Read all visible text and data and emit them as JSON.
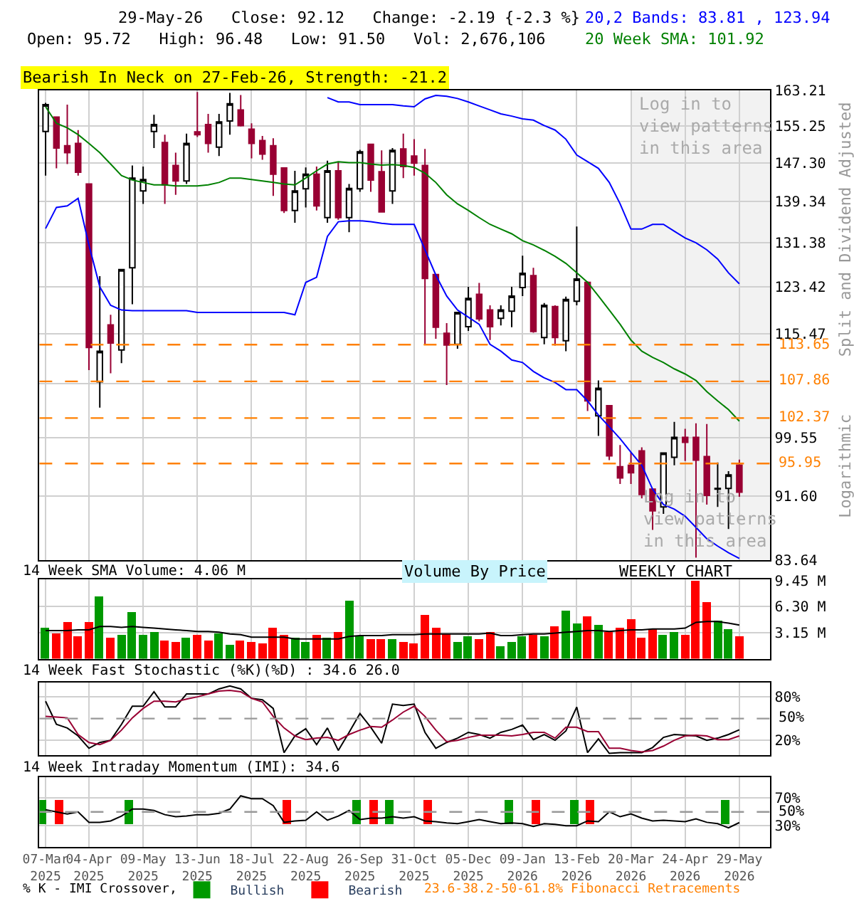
{
  "chart_data": [
    {
      "type": "candlestick",
      "log": true,
      "grid": true,
      "tick_labels": "y",
      "ylabel": "Split and Dividend Adjusted",
      "x": [
        "2025-03-07",
        "2025-03-14",
        "2025-03-21",
        "2025-03-28",
        "2025-04-04",
        "2025-04-11",
        "2025-04-18",
        "2025-04-25",
        "2025-05-02",
        "2025-05-09",
        "2025-05-16",
        "2025-05-23",
        "2025-05-30",
        "2025-06-06",
        "2025-06-13",
        "2025-06-20",
        "2025-06-27",
        "2025-07-04",
        "2025-07-11",
        "2025-07-18",
        "2025-07-25",
        "2025-08-01",
        "2025-08-08",
        "2025-08-15",
        "2025-08-22",
        "2025-08-29",
        "2025-09-05",
        "2025-09-12",
        "2025-09-19",
        "2025-09-26",
        "2025-10-03",
        "2025-10-10",
        "2025-10-17",
        "2025-10-24",
        "2025-10-31",
        "2025-11-07",
        "2025-11-14",
        "2025-11-21",
        "2025-11-28",
        "2025-12-05",
        "2025-12-12",
        "2025-12-19",
        "2025-12-26",
        "2026-01-02",
        "2026-01-09",
        "2026-01-16",
        "2026-01-23",
        "2026-01-30",
        "2026-02-06",
        "2026-02-13",
        "2026-02-20",
        "2026-02-27",
        "2026-03-06",
        "2026-03-13",
        "2026-03-20",
        "2026-03-27",
        "2026-04-03",
        "2026-04-10",
        "2026-04-17",
        "2026-04-24",
        "2026-05-01",
        "2026-05-08",
        "2026-05-15",
        "2026-05-22",
        "2026-05-29"
      ],
      "xlim": [
        "2025-03-03",
        "2026-06-18"
      ],
      "xticks": [
        "2025-03-07",
        "2025-04-04",
        "2025-05-09",
        "2025-06-13",
        "2025-07-18",
        "2025-08-22",
        "2025-09-26",
        "2025-10-31",
        "2025-12-05",
        "2026-01-09",
        "2026-02-13",
        "2026-03-20",
        "2026-04-24",
        "2026-05-29"
      ],
      "ylim": [
        83.64,
        163.21
      ],
      "yticks": [
        83.64,
        {
          "value": 91.6,
          "label": "91.60"
        },
        99.55,
        {
          "value": 107.51,
          "label": null
        },
        115.47,
        123.42,
        131.38,
        139.34,
        {
          "value": 147.3,
          "label": "147.30"
        },
        155.25,
        163.21
      ],
      "series": [
        {
          "colors": [
            "#ffffff",
            "#990033",
            "#990033",
            "#990033",
            "#990033",
            "#ffffff",
            "#990033",
            "#ffffff",
            "#ffffff",
            "#ffffff",
            "#ffffff",
            "#990033",
            "#990033",
            "#ffffff",
            "#990033",
            "#990033",
            "#ffffff",
            "#ffffff",
            "#990033",
            "#990033",
            "#990033",
            "#990033",
            "#990033",
            "#ffffff",
            "#ffffff",
            "#990033",
            "#ffffff",
            "#990033",
            "#ffffff",
            "#ffffff",
            "#990033",
            "#990033",
            "#ffffff",
            "#990033",
            "#990033",
            "#990033",
            "#990033",
            "#990033",
            "#ffffff",
            "#ffffff",
            "#990033",
            "#990033",
            "#ffffff",
            "#ffffff",
            "#ffffff",
            "#990033",
            "#ffffff",
            "#990033",
            "#ffffff",
            "#ffffff",
            "#990033",
            "#ffffff",
            "#990033",
            "#990033",
            "#990033",
            "#990033",
            "#990033",
            "#ffffff",
            "#ffffff",
            "#990033",
            "#990033",
            "#990033",
            "#000000",
            "#ffffff",
            "#990033"
          ],
          "ohlc": [
            [
              154.0,
              160.4,
              144.6,
              160.0
            ],
            [
              157.2,
              157.2,
              146.1,
              150.4
            ],
            [
              150.9,
              160.0,
              147.0,
              149.4
            ],
            [
              151.4,
              154.3,
              144.6,
              145.3
            ],
            [
              142.9,
              142.9,
              109.6,
              113.2
            ],
            [
              107.8,
              125.3,
              103.9,
              112.6
            ],
            [
              116.9,
              118.6,
              109.1,
              113.9
            ],
            [
              112.8,
              126.5,
              110.7,
              126.5
            ],
            [
              126.8,
              146.7,
              120.4,
              144.1
            ],
            [
              141.5,
              146.5,
              138.9,
              143.8
            ],
            [
              154.0,
              157.7,
              150.4,
              155.5
            ],
            [
              151.6,
              153.3,
              138.9,
              142.7
            ],
            [
              146.7,
              149.4,
              140.7,
              143.5
            ],
            [
              143.5,
              153.5,
              142.9,
              151.4
            ],
            [
              153.9,
              162.9,
              152.8,
              153.3
            ],
            [
              155.5,
              157.9,
              149.4,
              151.4
            ],
            [
              150.6,
              157.9,
              148.7,
              156.1
            ],
            [
              156.3,
              162.7,
              153.3,
              160.2
            ],
            [
              158.8,
              162.2,
              155.1,
              155.3
            ],
            [
              154.5,
              155.8,
              148.2,
              151.4
            ],
            [
              152.0,
              153.0,
              147.9,
              149.1
            ],
            [
              150.9,
              152.5,
              140.5,
              144.9
            ],
            [
              146.2,
              146.2,
              137.1,
              137.6
            ],
            [
              137.6,
              145.6,
              135.2,
              141.5
            ],
            [
              141.9,
              146.3,
              138.2,
              144.9
            ],
            [
              144.9,
              146.5,
              137.6,
              138.5
            ],
            [
              136.2,
              147.7,
              135.2,
              145.6
            ],
            [
              145.6,
              147.5,
              135.8,
              136.2
            ],
            [
              136.2,
              142.9,
              133.4,
              142.0
            ],
            [
              141.9,
              150.0,
              141.3,
              149.6
            ],
            [
              151.2,
              151.2,
              141.3,
              143.7
            ],
            [
              145.4,
              149.9,
              137.3,
              137.3
            ],
            [
              141.5,
              150.4,
              138.9,
              149.9
            ],
            [
              150.2,
              153.5,
              144.1,
              146.5
            ],
            [
              148.7,
              152.3,
              144.6,
              147.2
            ],
            [
              146.7,
              150.2,
              113.7,
              124.9
            ],
            [
              125.6,
              125.6,
              114.6,
              116.5
            ],
            [
              115.5,
              117.2,
              107.3,
              113.6
            ],
            [
              113.7,
              119.0,
              113.0,
              119.0
            ],
            [
              116.6,
              123.4,
              115.9,
              121.4
            ],
            [
              122.1,
              124.1,
              117.5,
              117.9
            ],
            [
              119.4,
              120.2,
              114.4,
              116.6
            ],
            [
              118.0,
              120.2,
              116.8,
              119.4
            ],
            [
              119.2,
              123.4,
              116.5,
              121.8
            ],
            [
              123.3,
              129.0,
              121.8,
              125.8
            ],
            [
              125.4,
              126.8,
              115.6,
              115.8
            ],
            [
              114.8,
              120.6,
              113.7,
              120.2
            ],
            [
              120.0,
              120.2,
              113.5,
              114.8
            ],
            [
              114.3,
              121.7,
              112.6,
              121.2
            ],
            [
              120.9,
              134.5,
              120.2,
              124.8
            ],
            [
              124.2,
              124.4,
              103.4,
              104.9
            ],
            [
              102.7,
              108.0,
              99.8,
              106.8
            ],
            [
              104.2,
              104.2,
              96.4,
              97.0
            ],
            [
              95.5,
              98.5,
              93.2,
              94.0
            ],
            [
              95.7,
              97.5,
              93.2,
              94.7
            ],
            [
              97.7,
              98.2,
              91.3,
              91.8
            ],
            [
              92.5,
              92.5,
              87.3,
              89.7
            ],
            [
              90.2,
              97.5,
              89.3,
              97.4
            ],
            [
              96.8,
              101.8,
              95.7,
              99.6
            ],
            [
              99.6,
              100.8,
              96.3,
              98.9
            ],
            [
              99.6,
              101.6,
              83.9,
              96.4
            ],
            [
              96.9,
              101.5,
              90.5,
              91.7
            ],
            [
              92.5,
              96.1,
              90.2,
              92.6
            ],
            [
              92.6,
              94.9,
              87.4,
              94.4
            ],
            [
              95.72,
              96.48,
              91.5,
              92.12
            ]
          ]
        },
        {
          "type": "line",
          "color": "#0000ff",
          "values": [
            null,
            null,
            null,
            null,
            null,
            null,
            null,
            null,
            null,
            null,
            null,
            null,
            null,
            null,
            null,
            null,
            null,
            null,
            null,
            null,
            null,
            null,
            null,
            null,
            null,
            null,
            161.6,
            160.6,
            160.6,
            160.0,
            160.0,
            160.0,
            160.0,
            159.7,
            159.5,
            161.3,
            162.1,
            161.9,
            161.4,
            160.6,
            159.7,
            158.8,
            157.9,
            157.4,
            156.8,
            156.5,
            155.3,
            154.3,
            152.3,
            148.9,
            147.5,
            146.1,
            143.2,
            138.9,
            134.0,
            134.0,
            134.9,
            134.9,
            133.6,
            132.3,
            131.4,
            130.1,
            128.4,
            125.9,
            123.94
          ]
        },
        {
          "type": "line",
          "color": "#0000ff",
          "values": [
            134.1,
            138.2,
            138.5,
            140.0,
            131.0,
            123.4,
            120.2,
            119.4,
            119.3,
            119.3,
            119.3,
            119.3,
            119.3,
            119.3,
            119.0,
            119.0,
            119.0,
            119.0,
            119.0,
            119.0,
            119.0,
            119.0,
            119.0,
            118.6,
            124.2,
            125.1,
            132.6,
            135.4,
            135.6,
            135.6,
            135.4,
            135.1,
            134.9,
            134.9,
            134.9,
            130.1,
            125.5,
            121.8,
            119.4,
            118.2,
            117.0,
            113.7,
            112.6,
            111.2,
            110.8,
            109.4,
            108.4,
            107.7,
            106.6,
            106.6,
            104.9,
            102.8,
            101.1,
            99.4,
            97.5,
            95.7,
            92.5,
            90.5,
            89.9,
            89.0,
            87.6,
            86.2,
            85.3,
            84.5,
            83.81
          ]
        },
        {
          "type": "line",
          "color": "#008000",
          "values": [
            159.5,
            155.8,
            154.8,
            153.3,
            151.4,
            149.4,
            147.0,
            144.6,
            143.7,
            143.2,
            142.7,
            142.7,
            142.5,
            142.5,
            142.5,
            142.7,
            143.2,
            144.1,
            144.1,
            143.8,
            143.5,
            143.2,
            142.9,
            142.7,
            144.1,
            145.6,
            147.0,
            147.5,
            147.3,
            147.3,
            147.0,
            146.8,
            146.9,
            146.7,
            146.3,
            145.1,
            143.2,
            140.7,
            138.9,
            137.6,
            136.2,
            134.9,
            134.0,
            133.1,
            131.8,
            131.0,
            130.0,
            128.9,
            127.6,
            125.9,
            124.2,
            121.8,
            119.4,
            117.0,
            114.4,
            112.6,
            111.6,
            110.8,
            109.8,
            109.0,
            108.0,
            106.3,
            104.9,
            103.6,
            101.92
          ]
        }
      ],
      "ref_lines": [
        {
          "axis": "y",
          "value": 113.65,
          "label": "113.65",
          "color": "#ff8000",
          "line_style": "dashed"
        },
        {
          "axis": "y",
          "value": 107.86,
          "label": "107.86",
          "color": "#ff8000",
          "line_style": "dashed"
        },
        {
          "axis": "y",
          "value": 102.37,
          "label": "102.37",
          "color": "#ff8000",
          "line_style": "dashed"
        },
        {
          "axis": "y",
          "value": 95.95,
          "label": "95.95",
          "color": "#ff8000",
          "line_style": "dashed"
        }
      ],
      "bands": [
        {
          "axis": "x",
          "from": "2026-03-20",
          "to": "2026-06-18",
          "label": "Log in to\nview patterns\nin this area",
          "color": "#f2f2f2"
        }
      ],
      "annotations": [
        "29-May-26   Close: 92.12   Change: -2.19 {-2.3 %}",
        "Open: 95.72   High: 96.48   Low: 91.50   Vol: 2,676,106",
        "20,2 Bands: 83.81 , 123.94",
        "20 Week SMA: 101.92",
        "Bearish In Neck on 27-Feb-26, Strength: -21.2",
        "Logarithmic",
        "Log in to\nview patterns\nin this area",
        "23.6-38.2-50-61.8% Fibonacci Retracements"
      ]
    },
    {
      "type": "bar",
      "grid": true,
      "tick_labels": "y",
      "title": "14 Week SMA Volume: 4.06 M",
      "x": [
        "2025-03-07",
        "2025-03-14",
        "2025-03-21",
        "2025-03-28",
        "2025-04-04",
        "2025-04-11",
        "2025-04-18",
        "2025-04-25",
        "2025-05-02",
        "2025-05-09",
        "2025-05-16",
        "2025-05-23",
        "2025-05-30",
        "2025-06-06",
        "2025-06-13",
        "2025-06-20",
        "2025-06-27",
        "2025-07-04",
        "2025-07-11",
        "2025-07-18",
        "2025-07-25",
        "2025-08-01",
        "2025-08-08",
        "2025-08-15",
        "2025-08-22",
        "2025-08-29",
        "2025-09-05",
        "2025-09-12",
        "2025-09-19",
        "2025-09-26",
        "2025-10-03",
        "2025-10-10",
        "2025-10-17",
        "2025-10-24",
        "2025-10-31",
        "2025-11-07",
        "2025-11-14",
        "2025-11-21",
        "2025-11-28",
        "2025-12-05",
        "2025-12-12",
        "2025-12-19",
        "2025-12-26",
        "2026-01-02",
        "2026-01-09",
        "2026-01-16",
        "2026-01-23",
        "2026-01-30",
        "2026-02-06",
        "2026-02-13",
        "2026-02-20",
        "2026-02-27",
        "2026-03-06",
        "2026-03-13",
        "2026-03-20",
        "2026-03-27",
        "2026-04-03",
        "2026-04-10",
        "2026-04-17",
        "2026-04-24",
        "2026-05-01",
        "2026-05-08",
        "2026-05-15",
        "2026-05-22",
        "2026-05-29"
      ],
      "xlim": [
        "2025-03-03",
        "2026-06-18"
      ],
      "xticks": [
        "2025-03-07",
        "2025-04-04",
        "2025-05-09",
        "2025-06-13",
        "2025-07-18",
        "2025-08-22",
        "2025-09-26",
        "2025-10-31",
        "2025-12-05",
        "2026-01-09",
        "2026-02-13",
        "2026-03-20",
        "2026-04-24",
        "2026-05-29"
      ],
      "ylim": [
        0,
        9.6
      ],
      "yticks": [
        {
          "value": 3.15,
          "label": "3.15 M"
        },
        {
          "value": 6.3,
          "label": "6.30 M"
        },
        {
          "value": 9.45,
          "label": "9.45 M"
        }
      ],
      "series": [
        {
          "colors": [
            "#009900",
            "#ff0000",
            "#ff0000",
            "#ff0000",
            "#ff0000",
            "#009900",
            "#ff0000",
            "#009900",
            "#009900",
            "#009900",
            "#009900",
            "#ff0000",
            "#ff0000",
            "#009900",
            "#ff0000",
            "#ff0000",
            "#009900",
            "#009900",
            "#ff0000",
            "#ff0000",
            "#ff0000",
            "#ff0000",
            "#ff0000",
            "#009900",
            "#009900",
            "#ff0000",
            "#009900",
            "#ff0000",
            "#009900",
            "#009900",
            "#ff0000",
            "#ff0000",
            "#009900",
            "#ff0000",
            "#ff0000",
            "#ff0000",
            "#ff0000",
            "#ff0000",
            "#009900",
            "#009900",
            "#ff0000",
            "#ff0000",
            "#009900",
            "#009900",
            "#009900",
            "#ff0000",
            "#009900",
            "#ff0000",
            "#009900",
            "#009900",
            "#ff0000",
            "#009900",
            "#ff0000",
            "#ff0000",
            "#ff0000",
            "#ff0000",
            "#ff0000",
            "#009900",
            "#009900",
            "#ff0000",
            "#ff0000",
            "#ff0000",
            "#009900",
            "#009900",
            "#ff0000"
          ],
          "values": [
            3.83,
            3.05,
            4.46,
            2.73,
            4.46,
            7.46,
            2.57,
            2.89,
            5.67,
            2.89,
            3.15,
            2.21,
            2.1,
            2.57,
            2.89,
            2.21,
            3.05,
            1.63,
            2.26,
            1.94,
            1.79,
            3.68,
            2.89,
            2.47,
            2.1,
            2.84,
            2.47,
            3.31,
            7.09,
            2.78,
            2.36,
            2.36,
            2.36,
            1.94,
            1.79,
            5.25,
            3.83,
            3.05,
            2.1,
            2.63,
            2.36,
            3.31,
            1.58,
            1.94,
            2.63,
            2.89,
            2.78,
            3.94,
            5.83,
            4.31,
            5.2,
            4.1,
            3.15,
            3.78,
            4.73,
            2.52,
            3.52,
            2.84,
            3.15,
            2.84,
            9.45,
            6.93,
            4.57,
            3.52,
            2.68
          ]
        },
        {
          "color": "#000000",
          "type": "line",
          "values": [
            3.4,
            3.4,
            3.4,
            3.5,
            3.5,
            3.9,
            3.9,
            3.8,
            3.9,
            3.8,
            3.7,
            3.6,
            3.5,
            3.4,
            3.3,
            3.3,
            3.2,
            3.0,
            2.9,
            2.6,
            2.6,
            2.6,
            2.6,
            2.4,
            2.4,
            2.4,
            2.4,
            2.4,
            2.7,
            2.8,
            2.8,
            2.8,
            2.9,
            2.9,
            2.9,
            3.0,
            3.0,
            3.0,
            3.0,
            3.0,
            3.0,
            3.1,
            2.8,
            2.8,
            2.9,
            3.0,
            3.0,
            3.1,
            3.2,
            3.3,
            3.4,
            3.4,
            3.3,
            3.4,
            3.5,
            3.5,
            3.6,
            3.6,
            3.6,
            3.7,
            4.4,
            4.5,
            4.5,
            4.3,
            4.06
          ]
        }
      ],
      "annotations": [
        "Volume By Price",
        "WEEKLY CHART"
      ]
    },
    {
      "type": "line",
      "grid": true,
      "tick_labels": "y",
      "title": "14 Week Fast Stochastic (%K)(%D) : 34.6 26.0",
      "x": [
        "2025-03-07",
        "2025-03-14",
        "2025-03-21",
        "2025-03-28",
        "2025-04-04",
        "2025-04-11",
        "2025-04-18",
        "2025-04-25",
        "2025-05-02",
        "2025-05-09",
        "2025-05-16",
        "2025-05-23",
        "2025-05-30",
        "2025-06-06",
        "2025-06-13",
        "2025-06-20",
        "2025-06-27",
        "2025-07-04",
        "2025-07-11",
        "2025-07-18",
        "2025-07-25",
        "2025-08-01",
        "2025-08-08",
        "2025-08-15",
        "2025-08-22",
        "2025-08-29",
        "2025-09-05",
        "2025-09-12",
        "2025-09-19",
        "2025-09-26",
        "2025-10-03",
        "2025-10-10",
        "2025-10-17",
        "2025-10-24",
        "2025-10-31",
        "2025-11-07",
        "2025-11-14",
        "2025-11-21",
        "2025-11-28",
        "2025-12-05",
        "2025-12-12",
        "2025-12-19",
        "2025-12-26",
        "2026-01-02",
        "2026-01-09",
        "2026-01-16",
        "2026-01-23",
        "2026-01-30",
        "2026-02-06",
        "2026-02-13",
        "2026-02-20",
        "2026-02-27",
        "2026-03-06",
        "2026-03-13",
        "2026-03-20",
        "2026-03-27",
        "2026-04-03",
        "2026-04-10",
        "2026-04-17",
        "2026-04-24",
        "2026-05-01",
        "2026-05-08",
        "2026-05-15",
        "2026-05-22",
        "2026-05-29"
      ],
      "xlim": [
        "2025-03-03",
        "2026-06-18"
      ],
      "xticks": [
        "2025-03-07",
        "2025-04-04",
        "2025-05-09",
        "2025-06-13",
        "2025-07-18",
        "2025-08-22",
        "2025-09-26",
        "2025-10-31",
        "2025-12-05",
        "2026-01-09",
        "2026-02-13",
        "2026-03-20",
        "2026-04-24",
        "2026-05-29"
      ],
      "ylim": [
        0,
        100
      ],
      "yticks": [
        {
          "value": 20,
          "label": "20%"
        },
        {
          "value": 80,
          "label": "80%"
        }
      ],
      "ref_lines": [
        {
          "axis": "y",
          "value": 50,
          "label": "50%",
          "color": "#999999",
          "line_style": "dashed"
        }
      ],
      "series": [
        {
          "color": "#000000",
          "values": [
            74,
            42,
            37,
            26,
            9,
            17,
            20,
            42,
            67,
            67,
            87,
            66,
            66,
            84,
            84,
            84,
            91,
            95,
            91,
            78,
            76,
            64,
            3,
            26,
            36,
            14,
            37,
            6,
            31,
            57,
            38,
            16,
            70,
            68,
            70,
            31,
            9,
            17,
            23,
            31,
            28,
            23,
            31,
            35,
            41,
            21,
            28,
            20,
            33,
            66,
            3,
            22,
            2,
            3,
            3,
            3,
            10,
            24,
            28,
            27,
            26,
            20,
            23,
            28,
            34.6
          ]
        },
        {
          "color": "#990033",
          "values": [
            53,
            52,
            51,
            28,
            17,
            14,
            20,
            34,
            51,
            64,
            74,
            74,
            73,
            77,
            80,
            84,
            88,
            89,
            87,
            78,
            73,
            53,
            37,
            26,
            21,
            23,
            24,
            20,
            28,
            34,
            39,
            38,
            48,
            59,
            67,
            53,
            34,
            18,
            20,
            24,
            27,
            27,
            27,
            26,
            28,
            31,
            31,
            23,
            38,
            38,
            32,
            32,
            9,
            9,
            6,
            4,
            6,
            12,
            20,
            26,
            27,
            26,
            21,
            21,
            26.0
          ]
        }
      ]
    },
    {
      "type": "line",
      "grid": true,
      "legend": "bottom",
      "title": "14 Week Intraday Momentum (IMI): 34.6",
      "x": [
        "2025-03-07",
        "2025-03-14",
        "2025-03-21",
        "2025-03-28",
        "2025-04-04",
        "2025-04-11",
        "2025-04-18",
        "2025-04-25",
        "2025-05-02",
        "2025-05-09",
        "2025-05-16",
        "2025-05-23",
        "2025-05-30",
        "2025-06-06",
        "2025-06-13",
        "2025-06-20",
        "2025-06-27",
        "2025-07-04",
        "2025-07-11",
        "2025-07-18",
        "2025-07-25",
        "2025-08-01",
        "2025-08-08",
        "2025-08-15",
        "2025-08-22",
        "2025-08-29",
        "2025-09-05",
        "2025-09-12",
        "2025-09-19",
        "2025-09-26",
        "2025-10-03",
        "2025-10-10",
        "2025-10-17",
        "2025-10-24",
        "2025-10-31",
        "2025-11-07",
        "2025-11-14",
        "2025-11-21",
        "2025-11-28",
        "2025-12-05",
        "2025-12-12",
        "2025-12-19",
        "2025-12-26",
        "2026-01-02",
        "2026-01-09",
        "2026-01-16",
        "2026-01-23",
        "2026-01-30",
        "2026-02-06",
        "2026-02-13",
        "2026-02-20",
        "2026-02-27",
        "2026-03-06",
        "2026-03-13",
        "2026-03-20",
        "2026-03-27",
        "2026-04-03",
        "2026-04-10",
        "2026-04-17",
        "2026-04-24",
        "2026-05-01",
        "2026-05-08",
        "2026-05-15",
        "2026-05-22",
        "2026-05-29"
      ],
      "xlim": [
        "2025-03-03",
        "2026-06-18"
      ],
      "xticks": [
        {
          "value": "2025-03-07",
          "label": "07-Mar\n2025"
        },
        {
          "value": "2025-04-04",
          "label": "04-Apr\n2025"
        },
        {
          "value": "2025-05-09",
          "label": "09-May\n2025"
        },
        {
          "value": "2025-06-13",
          "label": "13-Jun\n2025"
        },
        {
          "value": "2025-07-18",
          "label": "18-Jul\n2025"
        },
        {
          "value": "2025-08-22",
          "label": "22-Aug\n2025"
        },
        {
          "value": "2025-09-26",
          "label": "26-Sep\n2025"
        },
        {
          "value": "2025-10-31",
          "label": "31-Oct\n2025"
        },
        {
          "value": "2025-12-05",
          "label": "05-Dec\n2025"
        },
        {
          "value": "2026-01-09",
          "label": "09-Jan\n2026"
        },
        {
          "value": "2026-02-13",
          "label": "13-Feb\n2026"
        },
        {
          "value": "2026-03-20",
          "label": "20-Mar\n2026"
        },
        {
          "value": "2026-04-24",
          "label": "24-Apr\n2026"
        },
        {
          "value": "2026-05-29",
          "label": "29-May\n2026"
        }
      ],
      "ylim": [
        0,
        100
      ],
      "yticks": [
        {
          "value": 30,
          "label": "30%"
        },
        {
          "value": 70,
          "label": "70%"
        }
      ],
      "ref_lines": [
        {
          "axis": "y",
          "value": 50,
          "label": "50%",
          "color": "#999999",
          "line_style": "dashed"
        }
      ],
      "series": [
        {
          "type": "bar",
          "name": "Bullish",
          "color": "#009900",
          "base": [
            32,
            null,
            null,
            null,
            null,
            null,
            null,
            null,
            32,
            null,
            null,
            null,
            null,
            null,
            null,
            null,
            null,
            null,
            null,
            null,
            null,
            null,
            null,
            null,
            null,
            null,
            null,
            null,
            null,
            32,
            null,
            null,
            32,
            null,
            null,
            null,
            null,
            null,
            null,
            null,
            null,
            null,
            null,
            32,
            null,
            null,
            null,
            null,
            null,
            32,
            null,
            null,
            null,
            null,
            null,
            null,
            null,
            null,
            null,
            null,
            null,
            null,
            null,
            32,
            null
          ],
          "values": [
            36,
            null,
            null,
            null,
            null,
            null,
            null,
            null,
            36,
            null,
            null,
            null,
            null,
            null,
            null,
            null,
            null,
            null,
            null,
            null,
            null,
            null,
            null,
            null,
            null,
            null,
            null,
            null,
            null,
            36,
            null,
            null,
            36,
            null,
            null,
            null,
            null,
            null,
            null,
            null,
            null,
            null,
            null,
            36,
            null,
            null,
            null,
            null,
            null,
            36,
            null,
            null,
            null,
            null,
            null,
            null,
            null,
            null,
            null,
            null,
            null,
            null,
            null,
            36,
            null
          ]
        },
        {
          "type": "bar",
          "name": "Bearish",
          "color": "#ff0000",
          "base": [
            null,
            32,
            null,
            null,
            null,
            null,
            null,
            null,
            null,
            null,
            null,
            null,
            null,
            null,
            null,
            null,
            null,
            null,
            null,
            null,
            null,
            null,
            32,
            null,
            null,
            null,
            null,
            null,
            null,
            null,
            32,
            null,
            null,
            null,
            null,
            32,
            null,
            null,
            null,
            null,
            null,
            null,
            null,
            null,
            null,
            32,
            null,
            null,
            null,
            null,
            32,
            null,
            null,
            null,
            null,
            null,
            null,
            null,
            null,
            null,
            null,
            null,
            null,
            null,
            null
          ],
          "values": [
            null,
            36,
            null,
            null,
            null,
            null,
            null,
            null,
            null,
            null,
            null,
            null,
            null,
            null,
            null,
            null,
            null,
            null,
            null,
            null,
            null,
            null,
            36,
            null,
            null,
            null,
            null,
            null,
            null,
            null,
            36,
            null,
            null,
            null,
            null,
            36,
            null,
            null,
            null,
            null,
            null,
            null,
            null,
            null,
            null,
            36,
            null,
            null,
            null,
            null,
            36,
            null,
            null,
            null,
            null,
            null,
            null,
            null,
            null,
            null,
            null,
            null,
            null,
            null,
            null
          ]
        },
        {
          "color": "#000000",
          "values": [
            53,
            50,
            47,
            50,
            35,
            35,
            37,
            44,
            54,
            54,
            52,
            46,
            43,
            44,
            46,
            46,
            48,
            54,
            73,
            69,
            69,
            59,
            35,
            37,
            38,
            50,
            38,
            44,
            52,
            39,
            41,
            41,
            43,
            41,
            43,
            37,
            36,
            34,
            33,
            36,
            39,
            36,
            33,
            34,
            33,
            29,
            33,
            32,
            30,
            30,
            37,
            36,
            50,
            43,
            47,
            41,
            37,
            38,
            37,
            36,
            40,
            35,
            33,
            27,
            34.6
          ]
        }
      ],
      "annotations": [
        "% K - IMI Crossover,"
      ]
    }
  ]
}
